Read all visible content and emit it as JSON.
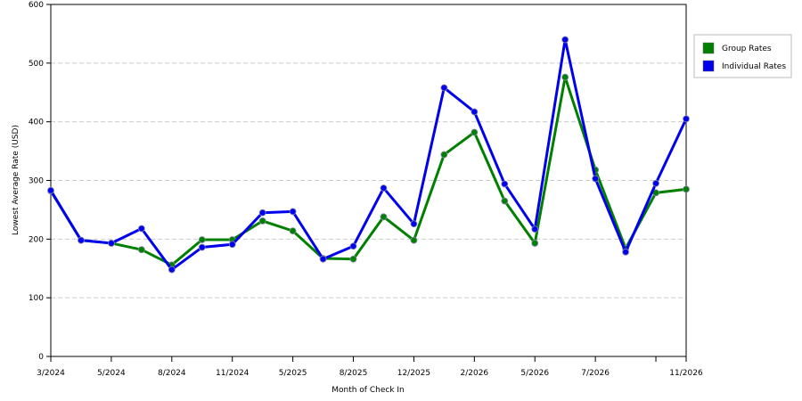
{
  "chart_data": {
    "type": "line",
    "categories": [
      "3/2024",
      null,
      "5/2024",
      null,
      "8/2024",
      null,
      "11/2024",
      null,
      "5/2025",
      null,
      "8/2025",
      null,
      "12/2025",
      null,
      "2/2026",
      null,
      "5/2026",
      null,
      "7/2026",
      null,
      null,
      "11/2026"
    ],
    "series": [
      {
        "name": "Group Rates",
        "color": "#008000",
        "values": [
          282,
          198,
          193,
          182,
          156,
          199,
          199,
          231,
          214,
          167,
          166,
          238,
          198,
          344,
          382,
          265,
          193,
          476,
          318,
          184,
          279,
          285
        ]
      },
      {
        "name": "Individual Rates",
        "color": "#0000ee",
        "values": [
          283,
          198,
          193,
          218,
          148,
          186,
          191,
          245,
          247,
          166,
          188,
          287,
          226,
          458,
          417,
          294,
          217,
          540,
          303,
          178,
          295,
          405
        ]
      }
    ],
    "ylim": [
      0,
      600
    ],
    "yticks": [
      0,
      100,
      200,
      300,
      400,
      500,
      600
    ],
    "ylabel": "Lowest Average Rate (USD)",
    "xlabel": "Month of Check In",
    "grid": true,
    "legend": "right"
  }
}
